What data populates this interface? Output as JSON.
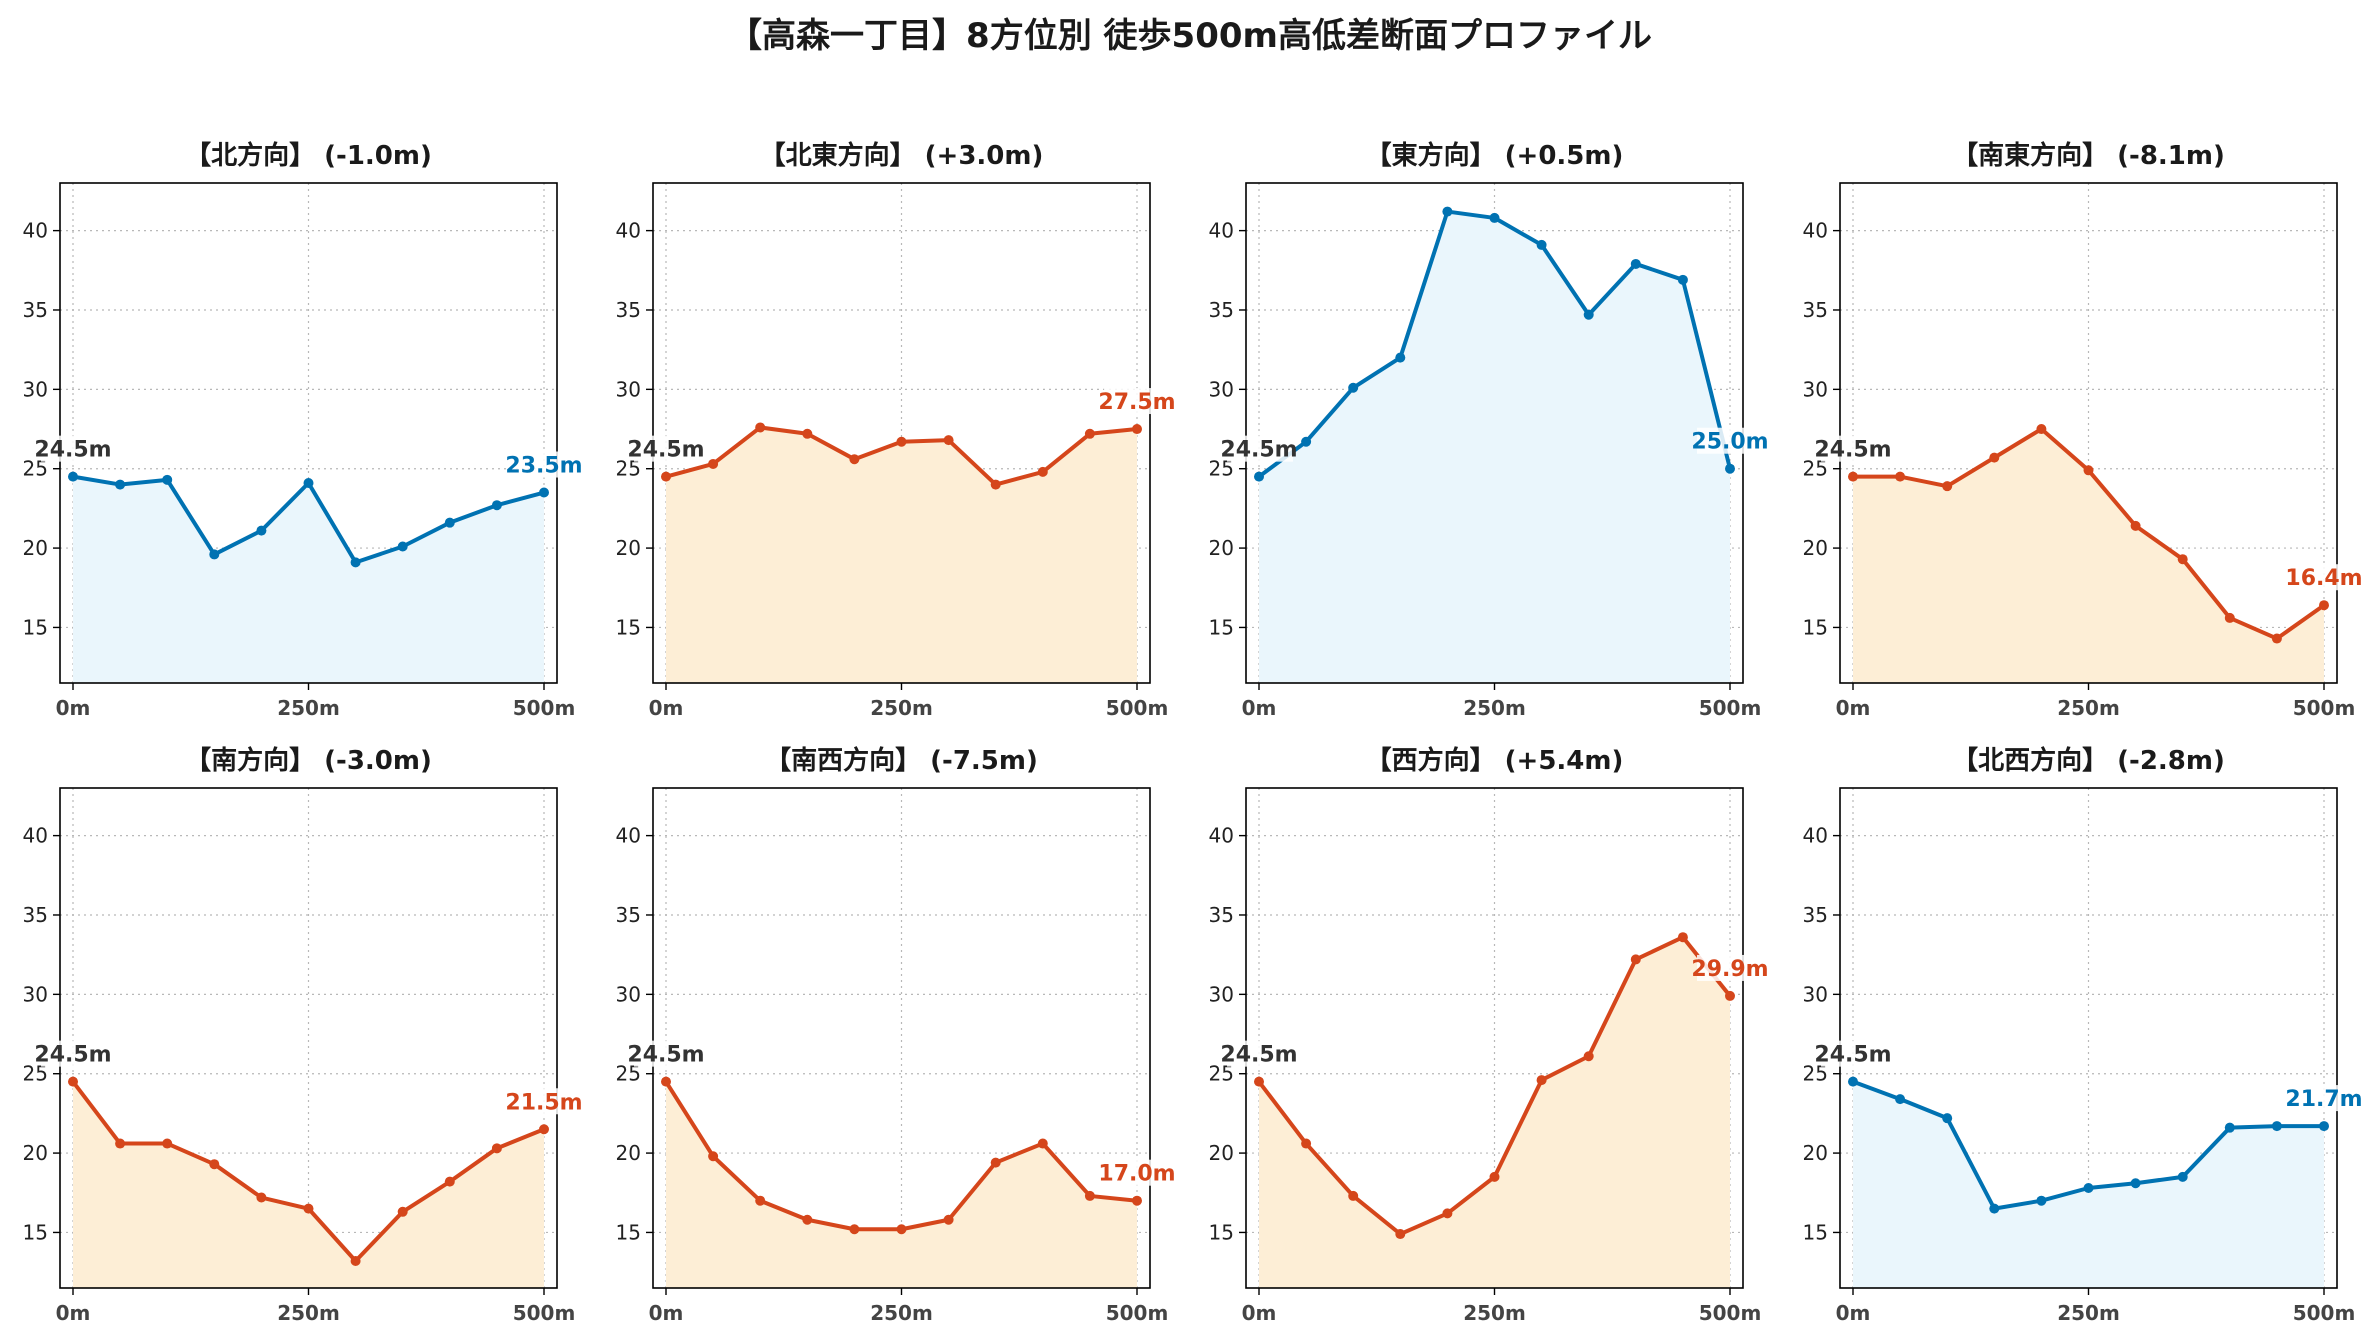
{
  "title": "【高森一丁目】8方位別 徒歩500m高低差断面プロファイル",
  "colors": {
    "down": "#0072b2",
    "down_fill": "#eaf6fc",
    "up": "#d5461b",
    "up_fill": "#fdeed6",
    "start_label": "#333333",
    "grid": "#b8b8b8",
    "axis": "#000000"
  },
  "chart_data": [
    {
      "type": "area",
      "title": "【北方向】 (-1.0m)",
      "trend": "down",
      "x": [
        0,
        50,
        100,
        150,
        200,
        250,
        300,
        350,
        400,
        450,
        500
      ],
      "y": [
        24.5,
        24.0,
        24.3,
        19.6,
        21.1,
        24.1,
        19.1,
        20.1,
        21.6,
        22.7,
        23.5
      ],
      "start_label": "24.5m",
      "end_label": "23.5m",
      "xticks": [
        "0m",
        "250m",
        "500m"
      ],
      "ylim": [
        11.5,
        43
      ],
      "yticks": [
        15,
        20,
        25,
        30,
        35,
        40
      ],
      "grid": true
    },
    {
      "type": "area",
      "title": "【北東方向】 (+3.0m)",
      "trend": "up",
      "x": [
        0,
        50,
        100,
        150,
        200,
        250,
        300,
        350,
        400,
        450,
        500
      ],
      "y": [
        24.5,
        25.3,
        27.6,
        27.2,
        25.6,
        26.7,
        26.8,
        24.0,
        24.8,
        27.2,
        27.5
      ],
      "start_label": "24.5m",
      "end_label": "27.5m",
      "xticks": [
        "0m",
        "250m",
        "500m"
      ],
      "ylim": [
        11.5,
        43
      ],
      "yticks": [
        15,
        20,
        25,
        30,
        35,
        40
      ],
      "grid": true
    },
    {
      "type": "area",
      "title": "【東方向】 (+0.5m)",
      "trend": "down",
      "x": [
        0,
        50,
        100,
        150,
        200,
        250,
        300,
        350,
        400,
        450,
        500
      ],
      "y": [
        24.5,
        26.7,
        30.1,
        32.0,
        41.2,
        40.8,
        39.1,
        34.7,
        37.9,
        36.9,
        25.0
      ],
      "start_label": "24.5m",
      "end_label": "25.0m",
      "xticks": [
        "0m",
        "250m",
        "500m"
      ],
      "ylim": [
        11.5,
        43
      ],
      "yticks": [
        15,
        20,
        25,
        30,
        35,
        40
      ],
      "grid": true
    },
    {
      "type": "area",
      "title": "【南東方向】 (-8.1m)",
      "trend": "up",
      "x": [
        0,
        50,
        100,
        150,
        200,
        250,
        300,
        350,
        400,
        450,
        500
      ],
      "y": [
        24.5,
        24.5,
        23.9,
        25.7,
        27.5,
        24.9,
        21.4,
        19.3,
        15.6,
        14.3,
        16.4
      ],
      "start_label": "24.5m",
      "end_label": "16.4m",
      "xticks": [
        "0m",
        "250m",
        "500m"
      ],
      "ylim": [
        11.5,
        43
      ],
      "yticks": [
        15,
        20,
        25,
        30,
        35,
        40
      ],
      "grid": true
    },
    {
      "type": "area",
      "title": "【南方向】 (-3.0m)",
      "trend": "up",
      "x": [
        0,
        50,
        100,
        150,
        200,
        250,
        300,
        350,
        400,
        450,
        500
      ],
      "y": [
        24.5,
        20.6,
        20.6,
        19.3,
        17.2,
        16.5,
        13.2,
        16.3,
        18.2,
        20.3,
        21.5
      ],
      "start_label": "24.5m",
      "end_label": "21.5m",
      "xticks": [
        "0m",
        "250m",
        "500m"
      ],
      "ylim": [
        11.5,
        43
      ],
      "yticks": [
        15,
        20,
        25,
        30,
        35,
        40
      ],
      "grid": true
    },
    {
      "type": "area",
      "title": "【南西方向】 (-7.5m)",
      "trend": "up",
      "x": [
        0,
        50,
        100,
        150,
        200,
        250,
        300,
        350,
        400,
        450,
        500
      ],
      "y": [
        24.5,
        19.8,
        17.0,
        15.8,
        15.2,
        15.2,
        15.8,
        19.4,
        20.6,
        17.3,
        17.0
      ],
      "start_label": "24.5m",
      "end_label": "17.0m",
      "xticks": [
        "0m",
        "250m",
        "500m"
      ],
      "ylim": [
        11.5,
        43
      ],
      "yticks": [
        15,
        20,
        25,
        30,
        35,
        40
      ],
      "grid": true
    },
    {
      "type": "area",
      "title": "【西方向】 (+5.4m)",
      "trend": "up",
      "x": [
        0,
        50,
        100,
        150,
        200,
        250,
        300,
        350,
        400,
        450,
        500
      ],
      "y": [
        24.5,
        20.6,
        17.3,
        14.9,
        16.2,
        18.5,
        24.6,
        26.1,
        32.2,
        33.6,
        29.9
      ],
      "start_label": "24.5m",
      "end_label": "29.9m",
      "xticks": [
        "0m",
        "250m",
        "500m"
      ],
      "ylim": [
        11.5,
        43
      ],
      "yticks": [
        15,
        20,
        25,
        30,
        35,
        40
      ],
      "grid": true
    },
    {
      "type": "area",
      "title": "【北西方向】 (-2.8m)",
      "trend": "down",
      "x": [
        0,
        50,
        100,
        150,
        200,
        250,
        300,
        350,
        400,
        450,
        500
      ],
      "y": [
        24.5,
        23.4,
        22.2,
        16.5,
        17.0,
        17.8,
        18.1,
        18.5,
        21.6,
        21.7,
        21.7
      ],
      "start_label": "24.5m",
      "end_label": "21.7m",
      "xticks": [
        "0m",
        "250m",
        "500m"
      ],
      "ylim": [
        11.5,
        43
      ],
      "yticks": [
        15,
        20,
        25,
        30,
        35,
        40
      ],
      "grid": true
    }
  ]
}
